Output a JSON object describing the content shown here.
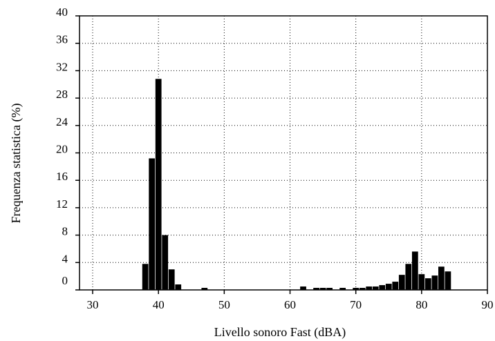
{
  "chart_data": {
    "type": "bar",
    "xlabel": "Livello sonoro Fast (dBA)",
    "ylabel": "Frequenza statistica (%)",
    "xlim": [
      28,
      90
    ],
    "ylim": [
      0,
      40
    ],
    "xticks": [
      30,
      40,
      50,
      60,
      70,
      80,
      90
    ],
    "yticks": [
      0,
      4,
      8,
      12,
      16,
      20,
      24,
      28,
      32,
      36,
      40
    ],
    "grid": true,
    "bin_width": 1,
    "x": [
      38,
      39,
      40,
      41,
      42,
      43,
      47,
      62,
      64,
      65,
      66,
      68,
      70,
      71,
      72,
      73,
      74,
      75,
      76,
      77,
      78,
      79,
      80,
      81,
      82,
      83,
      84
    ],
    "values": [
      3.8,
      19.2,
      30.8,
      8.0,
      3.0,
      0.8,
      0.3,
      0.5,
      0.3,
      0.3,
      0.3,
      0.3,
      0.3,
      0.3,
      0.5,
      0.5,
      0.7,
      0.9,
      1.2,
      2.2,
      3.8,
      5.6,
      2.3,
      1.7,
      2.1,
      3.4,
      2.7
    ]
  }
}
